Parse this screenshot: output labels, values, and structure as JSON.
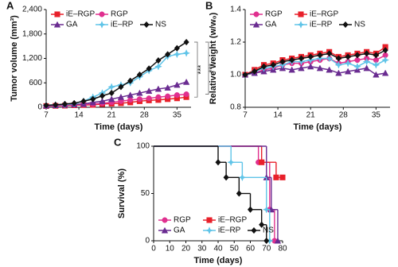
{
  "chart_data": [
    {
      "type": "line",
      "panel_label": "A",
      "xlabel": "Time (days)",
      "ylabel": "Tumor volume (mm³)",
      "x": [
        7,
        9,
        11,
        13,
        15,
        17,
        19,
        21,
        23,
        25,
        27,
        29,
        31,
        33,
        35,
        37
      ],
      "xlim": [
        7,
        38
      ],
      "xticks": [
        7,
        14,
        21,
        28,
        35
      ],
      "ylim": [
        0,
        2400
      ],
      "yticks": [
        0,
        600,
        {
          "value": 1200,
          "label": "1,200"
        },
        {
          "value": 1800,
          "label": "1,800"
        },
        {
          "value": 2400,
          "label": "2,400"
        }
      ],
      "legend": "upper left",
      "annotations": [
        "***",
        "***"
      ],
      "series": [
        {
          "name": "iE–RGP",
          "color": "#e8202a",
          "marker": "square",
          "values": [
            30,
            35,
            40,
            50,
            55,
            60,
            80,
            90,
            100,
            120,
            150,
            170,
            180,
            200,
            220,
            250
          ]
        },
        {
          "name": "RGP",
          "color": "#e0308f",
          "marker": "circle",
          "values": [
            30,
            40,
            50,
            60,
            70,
            80,
            100,
            120,
            150,
            180,
            200,
            220,
            250,
            270,
            300,
            320
          ]
        },
        {
          "name": "GA",
          "color": "#6a2c91",
          "marker": "triangle",
          "values": [
            40,
            50,
            60,
            70,
            80,
            120,
            150,
            200,
            250,
            300,
            350,
            400,
            450,
            480,
            550,
            620
          ]
        },
        {
          "name": "iE–RP",
          "color": "#5fc4e8",
          "marker": "star",
          "values": [
            50,
            60,
            70,
            90,
            150,
            250,
            350,
            500,
            550,
            600,
            750,
            900,
            1000,
            1250,
            1300,
            1330
          ]
        },
        {
          "name": "NS",
          "color": "#111111",
          "marker": "diamond",
          "values": [
            50,
            60,
            80,
            100,
            150,
            200,
            280,
            350,
            500,
            650,
            800,
            950,
            1150,
            1300,
            1450,
            1600
          ]
        }
      ]
    },
    {
      "type": "line",
      "panel_label": "B",
      "xlabel": "Time (days)",
      "ylabel": "Relative weight (w/w₀)",
      "x": [
        7,
        9,
        11,
        13,
        15,
        17,
        19,
        21,
        23,
        25,
        27,
        29,
        31,
        33,
        35,
        37
      ],
      "xlim": [
        7,
        38
      ],
      "xticks": [
        7,
        14,
        21,
        28,
        35
      ],
      "ylim": [
        0.8,
        1.4
      ],
      "yticks": [
        0.8,
        {
          "value": 1,
          "label": "1.0"
        },
        1.2,
        1.4
      ],
      "legend": "upper left",
      "series": [
        {
          "name": "RGP",
          "color": "#e0308f",
          "marker": "circle",
          "values": [
            1.0,
            1.01,
            1.03,
            1.04,
            1.06,
            1.07,
            1.07,
            1.08,
            1.09,
            1.1,
            1.07,
            1.08,
            1.09,
            1.1,
            1.09,
            1.12
          ]
        },
        {
          "name": "iE–RGP",
          "color": "#e8202a",
          "marker": "square",
          "values": [
            1.0,
            1.03,
            1.06,
            1.07,
            1.09,
            1.1,
            1.11,
            1.12,
            1.13,
            1.14,
            1.11,
            1.12,
            1.13,
            1.14,
            1.13,
            1.17
          ]
        },
        {
          "name": "GA",
          "color": "#6a2c91",
          "marker": "triangle",
          "values": [
            1.0,
            1.01,
            1.02,
            1.03,
            1.04,
            1.03,
            1.04,
            1.05,
            1.04,
            1.03,
            1.01,
            1.02,
            1.03,
            1.04,
            1.0,
            1.01
          ]
        },
        {
          "name": "iE–RP",
          "color": "#5fc4e8",
          "marker": "star",
          "values": [
            1.0,
            1.02,
            1.04,
            1.05,
            1.06,
            1.08,
            1.08,
            1.09,
            1.1,
            1.1,
            1.06,
            1.07,
            1.05,
            1.08,
            1.06,
            1.09
          ]
        },
        {
          "name": "NS",
          "color": "#111111",
          "marker": "diamond",
          "values": [
            1.0,
            1.02,
            1.05,
            1.06,
            1.08,
            1.09,
            1.1,
            1.11,
            1.12,
            1.13,
            1.1,
            1.11,
            1.12,
            1.13,
            1.12,
            1.15
          ]
        }
      ]
    },
    {
      "type": "line",
      "step": true,
      "panel_label": "C",
      "xlabel": "Time (days)",
      "ylabel": "Survival (%)",
      "xlim": [
        0,
        80
      ],
      "xticks": [
        0,
        10,
        20,
        30,
        40,
        50,
        60,
        70,
        80
      ],
      "ylim": [
        0,
        100
      ],
      "yticks": [
        0,
        50,
        100
      ],
      "legend": "lower left",
      "series": [
        {
          "name": "RGP",
          "color": "#e0308f",
          "marker": "circle",
          "x": [
            0,
            65,
            72,
            75
          ],
          "values": [
            100,
            83,
            33,
            0
          ]
        },
        {
          "name": "iE–RGP",
          "color": "#e8202a",
          "marker": "square",
          "x": [
            0,
            67,
            76,
            80
          ],
          "values": [
            100,
            83,
            67,
            67
          ]
        },
        {
          "name": "GA",
          "color": "#6a2c91",
          "marker": "triangle",
          "x": [
            0,
            70,
            73,
            77
          ],
          "values": [
            100,
            67,
            33,
            0
          ]
        },
        {
          "name": "iE–RP",
          "color": "#5fc4e8",
          "marker": "star",
          "x": [
            0,
            48,
            55,
            70,
            72
          ],
          "values": [
            100,
            83,
            67,
            33,
            0
          ]
        },
        {
          "name": "NS",
          "color": "#111111",
          "marker": "diamond",
          "x": [
            0,
            40,
            45,
            53,
            60,
            67,
            70
          ],
          "values": [
            100,
            83,
            67,
            50,
            33,
            17,
            0
          ]
        }
      ]
    }
  ]
}
